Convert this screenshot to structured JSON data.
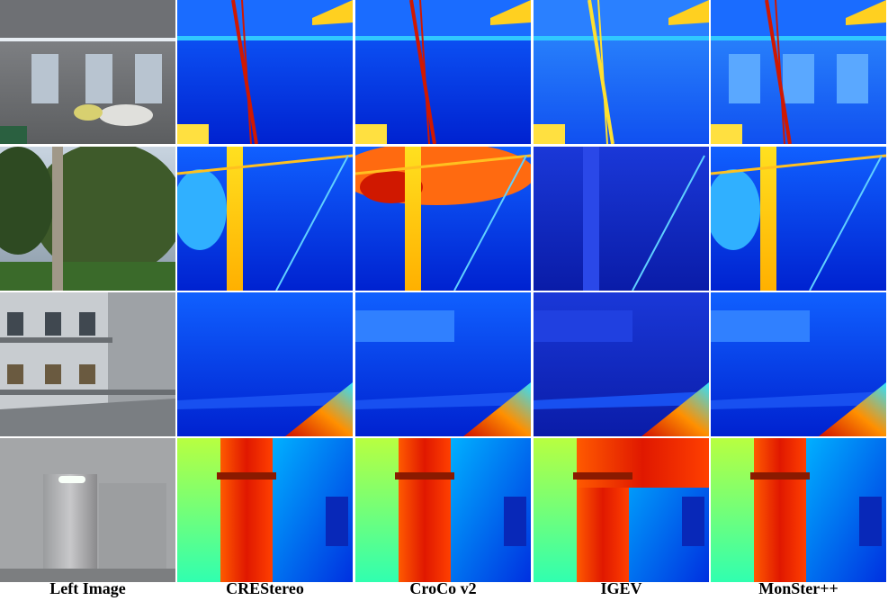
{
  "columns": [
    "Left Image",
    "CREStereo",
    "CroCo v2",
    "IGEV",
    "MonSter++"
  ]
}
